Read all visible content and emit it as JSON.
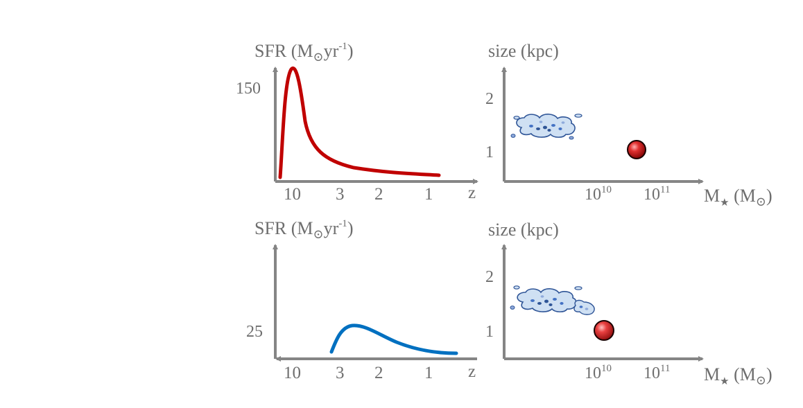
{
  "colors": {
    "axis": "#858585",
    "text": "#6e6e6e",
    "curve_top": "#c00000",
    "curve_bottom": "#0070c0",
    "cloud_fill": "#cfe0f3",
    "cloud_stroke": "#2f5597",
    "sphere": "#c00000"
  },
  "panels": {
    "top_left": {
      "ylabel_main": "SFR (M",
      "ylabel_sub": "yr",
      "ylabel_sup": "-1",
      "ylabel_close": ")",
      "ytick": "150",
      "xticks": [
        "10",
        "3",
        "2",
        "1"
      ],
      "xlabel": "z"
    },
    "top_right": {
      "ylabel": "size (kpc)",
      "yticks": [
        "2",
        "1"
      ],
      "xtick1_base": "10",
      "xtick1_exp": "10",
      "xtick2_base": "10",
      "xtick2_exp": "11",
      "xlabel_main": "M",
      "xlabel_unit": " (M",
      "xlabel_close": ")"
    },
    "bottom_left": {
      "ylabel_main": "SFR (M",
      "ylabel_sub": "yr",
      "ylabel_sup": "-1",
      "ylabel_close": ")",
      "ytick": "25",
      "xticks": [
        "10",
        "3",
        "2",
        "1"
      ],
      "xlabel": "z"
    },
    "bottom_right": {
      "ylabel": "size (kpc)",
      "yticks": [
        "2",
        "1"
      ],
      "xtick1_base": "10",
      "xtick1_exp": "10",
      "xtick2_base": "10",
      "xtick2_exp": "11",
      "xlabel_main": "M",
      "xlabel_unit": " (M",
      "xlabel_close": ")"
    }
  }
}
